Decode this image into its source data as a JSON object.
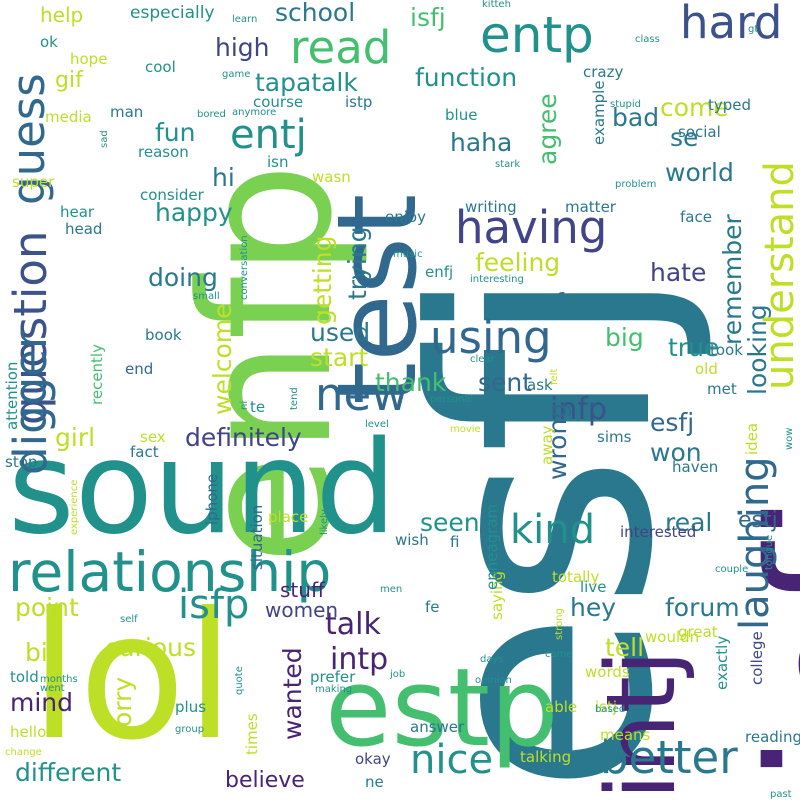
{
  "palette": {
    "dark_purple": "#482475",
    "blue_purple": "#414487",
    "slate": "#3b528b",
    "steel": "#31688e",
    "teal_blue": "#2a788e",
    "teal": "#21918c",
    "sea_green": "#22a884",
    "green": "#44bf70",
    "light_green": "#7ad151",
    "lime": "#bddf26",
    "yellow": "#fde725"
  },
  "words": [
    "esfj",
    "infj",
    "enfp",
    "estp",
    "lol",
    "sound",
    "test",
    "relationship",
    "infp",
    "entj",
    "entp",
    "intj",
    "hard",
    "read",
    "guess",
    "question",
    "digger",
    "having",
    "using",
    "new",
    "better",
    "nice",
    "kind",
    "laughing",
    "understand",
    "isfp",
    "intp",
    "talk",
    "estj",
    "esfj",
    "definitely",
    "thank",
    "sent",
    "school",
    "isfj",
    "high",
    "tapatalk",
    "function",
    "haha",
    "fun",
    "hi",
    "happy",
    "doing",
    "getting",
    "trying",
    "world",
    "feeling",
    "hate",
    "agree",
    "bad",
    "come",
    "se",
    "looking",
    "remember",
    "true",
    "big",
    "far",
    "used",
    "start",
    "welcome",
    "girl",
    "real",
    "won",
    "wrong",
    "seen",
    "forum",
    "hey",
    "tell",
    "curious",
    "point",
    "bit",
    "sorry",
    "mind",
    "wanted",
    "believe",
    "different",
    "women",
    "stuff",
    "help",
    "especially",
    "gif",
    "cool",
    "media",
    "man",
    "super",
    "hear",
    "head",
    "book",
    "attention",
    "stop",
    "recently",
    "end",
    "fact",
    "sex",
    "iphone",
    "situation",
    "place",
    "times",
    "plus",
    "hello",
    "okay",
    "answer",
    "interested",
    "totally",
    "saying",
    "enneagram",
    "exactly",
    "college",
    "wouldn",
    "great",
    "words",
    "reading",
    "means",
    "able",
    "talking",
    "ne",
    "fe",
    "fi",
    "wish",
    "istj",
    "istp",
    "blue",
    "crazy",
    "example",
    "social",
    "typed",
    "took",
    "met",
    "old",
    "ask",
    "away",
    "idea",
    "sims",
    "haven",
    "course",
    "reason",
    "consider",
    "wasn",
    "isn",
    "enjoy",
    "writing",
    "matter",
    "face",
    "enfj",
    "music",
    "interesting",
    "small",
    "conversation",
    "level",
    "personal",
    "clear",
    "movie",
    "felt",
    "past",
    "wow",
    "tongue",
    "couple",
    "live",
    "men",
    "self",
    "months",
    "change",
    "went",
    "told",
    "group",
    "quote",
    "job",
    "days",
    "strong",
    "came",
    "opinion",
    "based",
    "making",
    "likely",
    "tend",
    "te",
    "ni",
    "experience",
    "stark",
    "problem",
    "stupid",
    "bored",
    "anymore",
    "game",
    "learn",
    "kitteh",
    "class",
    "gt",
    "hope",
    "ok",
    "sad",
    "prefer"
  ]
}
